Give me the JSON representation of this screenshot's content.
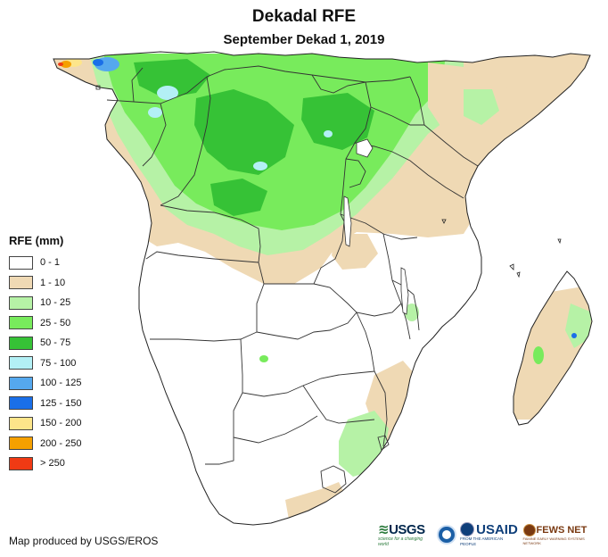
{
  "title": "Dekadal RFE",
  "subtitle": "September Dekad 1, 2019",
  "legend": {
    "title": "RFE (mm)",
    "items": [
      {
        "label": "0 - 1",
        "color": "#ffffff"
      },
      {
        "label": "1 - 10",
        "color": "#efd9b4"
      },
      {
        "label": "10 - 25",
        "color": "#b6f2a6"
      },
      {
        "label": "25 - 50",
        "color": "#78eb5c"
      },
      {
        "label": "50 - 75",
        "color": "#36c236"
      },
      {
        "label": "75 - 100",
        "color": "#b3f0f5"
      },
      {
        "label": "100 - 125",
        "color": "#55a8ee"
      },
      {
        "label": "125 - 150",
        "color": "#1a6fe8"
      },
      {
        "label": "150 - 200",
        "color": "#fde58a"
      },
      {
        "label": "200 - 250",
        "color": "#f5a000"
      },
      {
        "label": "> 250",
        "color": "#f03a14"
      }
    ]
  },
  "credit": "Map produced by USGS/EROS",
  "logos": {
    "usgs": "USGS",
    "usgs_tagline": "science for a changing world",
    "usaid": "USAID",
    "usaid_tagline": "FROM THE AMERICAN PEOPLE",
    "fews": "FEWS NET",
    "fews_tagline": "FAMINE EARLY WARNING SYSTEMS NETWORK"
  }
}
